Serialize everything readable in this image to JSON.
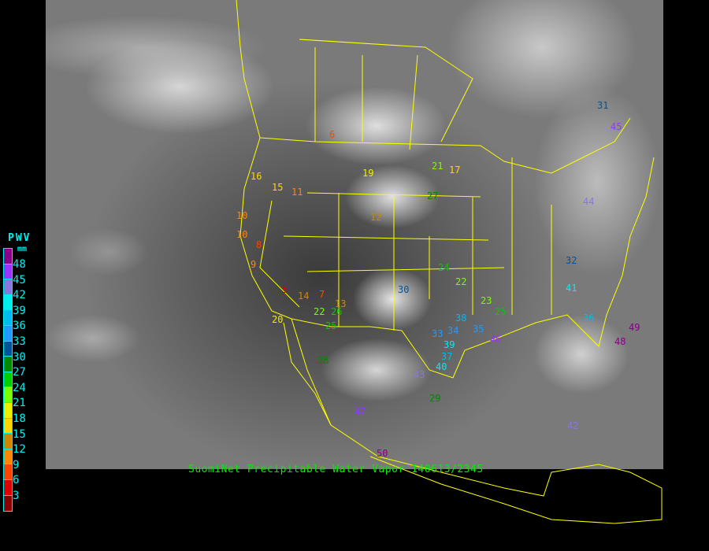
{
  "legend": {
    "title": "PWV",
    "unit": "mm",
    "ticks": [
      "48",
      "45",
      "42",
      "39",
      "36",
      "33",
      "30",
      "27",
      "24",
      "21",
      "18",
      "15",
      "12",
      "9",
      "6",
      "3"
    ],
    "colors": [
      "#880088",
      "#9933ff",
      "#8877dd",
      "#00eeee",
      "#00bbee",
      "#2299ff",
      "#005599",
      "#008800",
      "#00cc00",
      "#77ff00",
      "#eeee00",
      "#ffd700",
      "#cc8800",
      "#ff8800",
      "#ff4400",
      "#dd0000",
      "#880000"
    ]
  },
  "caption": "SuomiNet Precipitable Water Vapor 140613/2345",
  "border_color": "#ffff00",
  "stations": [
    "6",
    "19",
    "16",
    "15",
    "10",
    "11",
    "10",
    "8",
    "9",
    "7",
    "5",
    "14",
    "20",
    "26",
    "25",
    "22",
    "28",
    "17",
    "12",
    "13",
    "21",
    "22",
    "23",
    "24",
    "25",
    "27",
    "30",
    "33",
    "34",
    "35",
    "38",
    "39",
    "40",
    "41",
    "42",
    "45",
    "46",
    "48",
    "49",
    "31",
    "36",
    "37",
    "32",
    "29",
    "43",
    "44",
    "47",
    "50"
  ]
}
